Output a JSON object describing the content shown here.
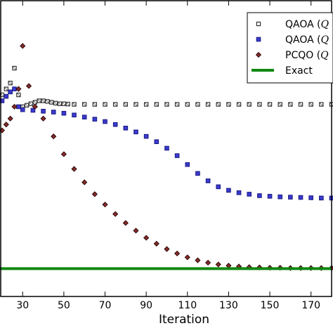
{
  "chart_data": {
    "type": "scatter",
    "xlabel": "Iteration",
    "ylabel": "",
    "title": "",
    "xlim": [
      19,
      180
    ],
    "ylim": [
      0,
      1
    ],
    "x_ticks": [
      "30",
      "50",
      "70",
      "90",
      "110",
      "130",
      "150",
      "170"
    ],
    "x_tick_values": [
      30,
      50,
      70,
      90,
      110,
      130,
      150,
      170
    ],
    "legend_position": "top-right",
    "grid": false,
    "series": [
      {
        "name": "QAOA (Q",
        "marker": "square-open",
        "color": "#ffffff",
        "edge": "#333333",
        "x": [
          20,
          22,
          24,
          26,
          28,
          30,
          32,
          34,
          36,
          38,
          40,
          42,
          44,
          46,
          48,
          50,
          52,
          55,
          60,
          65,
          70,
          75,
          80,
          85,
          90,
          95,
          100,
          105,
          110,
          115,
          120,
          125,
          130,
          135,
          140,
          145,
          150,
          155,
          160,
          165,
          170,
          175,
          180
        ],
        "y": [
          0.68,
          0.7,
          0.72,
          0.77,
          0.68,
          0.64,
          0.645,
          0.65,
          0.655,
          0.66,
          0.66,
          0.658,
          0.655,
          0.652,
          0.65,
          0.65,
          0.649,
          0.648,
          0.648,
          0.648,
          0.648,
          0.648,
          0.648,
          0.648,
          0.648,
          0.648,
          0.648,
          0.648,
          0.648,
          0.648,
          0.648,
          0.648,
          0.648,
          0.648,
          0.648,
          0.648,
          0.648,
          0.648,
          0.648,
          0.648,
          0.648,
          0.648,
          0.648
        ]
      },
      {
        "name": "QAOA (Q",
        "marker": "square-filled",
        "color": "#3a3ad0",
        "edge": "#1a1a80",
        "x": [
          20,
          22,
          24,
          26,
          28,
          30,
          35,
          40,
          45,
          50,
          55,
          60,
          65,
          70,
          75,
          80,
          85,
          90,
          95,
          100,
          105,
          110,
          115,
          120,
          125,
          130,
          135,
          140,
          145,
          150,
          155,
          160,
          165,
          170,
          175,
          180
        ],
        "y": [
          0.66,
          0.675,
          0.69,
          0.7,
          0.64,
          0.63,
          0.628,
          0.625,
          0.622,
          0.618,
          0.612,
          0.605,
          0.598,
          0.59,
          0.58,
          0.568,
          0.555,
          0.54,
          0.522,
          0.5,
          0.475,
          0.445,
          0.415,
          0.39,
          0.37,
          0.358,
          0.35,
          0.345,
          0.34,
          0.338,
          0.336,
          0.335,
          0.334,
          0.333,
          0.332,
          0.332
        ]
      },
      {
        "name": "PCQO (Q",
        "marker": "diamond",
        "color": "#8b2a2a",
        "edge": "#2a0a0a",
        "x": [
          20,
          22,
          24,
          26,
          28,
          30,
          33,
          36,
          40,
          45,
          50,
          55,
          60,
          65,
          70,
          75,
          80,
          85,
          90,
          95,
          100,
          105,
          110,
          115,
          120,
          125,
          130,
          135,
          140,
          145,
          150,
          155,
          160,
          165,
          170,
          175,
          180
        ],
        "y": [
          0.56,
          0.58,
          0.6,
          0.64,
          0.7,
          0.845,
          0.71,
          0.64,
          0.6,
          0.54,
          0.48,
          0.43,
          0.385,
          0.345,
          0.31,
          0.278,
          0.248,
          0.222,
          0.198,
          0.178,
          0.16,
          0.145,
          0.132,
          0.122,
          0.114,
          0.108,
          0.104,
          0.101,
          0.099,
          0.098,
          0.097,
          0.097,
          0.096,
          0.096,
          0.096,
          0.096,
          0.096
        ]
      },
      {
        "name": "Exact",
        "marker": "line",
        "color": "#118811",
        "x": [
          19,
          180
        ],
        "y": [
          0.094,
          0.094
        ]
      }
    ]
  }
}
